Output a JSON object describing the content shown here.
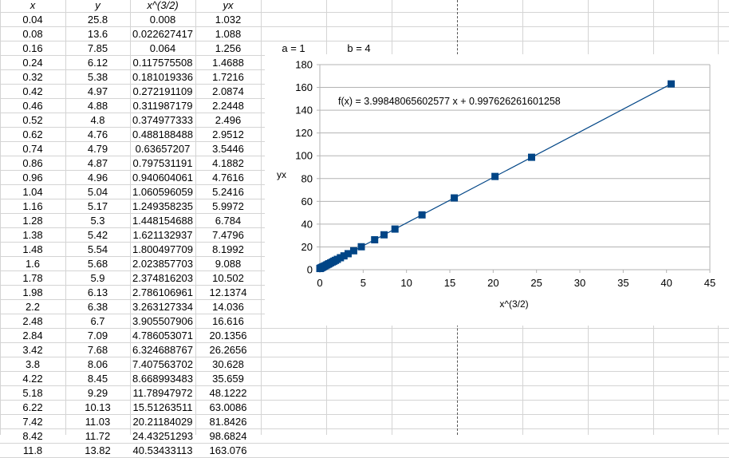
{
  "spreadsheet": {
    "headers": {
      "x": "x",
      "y": "y",
      "x32": "x^(3/2)",
      "yx": "yx"
    },
    "rows": [
      [
        "0.04",
        "25.8",
        "0.008",
        "1.032"
      ],
      [
        "0.08",
        "13.6",
        "0.022627417",
        "1.088"
      ],
      [
        "0.16",
        "7.85",
        "0.064",
        "1.256"
      ],
      [
        "0.24",
        "6.12",
        "0.117575508",
        "1.4688"
      ],
      [
        "0.32",
        "5.38",
        "0.181019336",
        "1.7216"
      ],
      [
        "0.42",
        "4.97",
        "0.272191109",
        "2.0874"
      ],
      [
        "0.46",
        "4.88",
        "0.311987179",
        "2.2448"
      ],
      [
        "0.52",
        "4.8",
        "0.374977333",
        "2.496"
      ],
      [
        "0.62",
        "4.76",
        "0.488188488",
        "2.9512"
      ],
      [
        "0.74",
        "4.79",
        "0.63657207",
        "3.5446"
      ],
      [
        "0.86",
        "4.87",
        "0.797531191",
        "4.1882"
      ],
      [
        "0.96",
        "4.96",
        "0.940604061",
        "4.7616"
      ],
      [
        "1.04",
        "5.04",
        "1.060596059",
        "5.2416"
      ],
      [
        "1.16",
        "5.17",
        "1.249358235",
        "5.9972"
      ],
      [
        "1.28",
        "5.3",
        "1.448154688",
        "6.784"
      ],
      [
        "1.38",
        "5.42",
        "1.621132937",
        "7.4796"
      ],
      [
        "1.48",
        "5.54",
        "1.800497709",
        "8.1992"
      ],
      [
        "1.6",
        "5.68",
        "2.023857703",
        "9.088"
      ],
      [
        "1.78",
        "5.9",
        "2.374816203",
        "10.502"
      ],
      [
        "1.98",
        "6.13",
        "2.786106961",
        "12.1374"
      ],
      [
        "2.2",
        "6.38",
        "3.263127334",
        "14.036"
      ],
      [
        "2.48",
        "6.7",
        "3.905507906",
        "16.616"
      ],
      [
        "2.84",
        "7.09",
        "4.786053071",
        "20.1356"
      ],
      [
        "3.42",
        "7.68",
        "6.324688767",
        "26.2656"
      ],
      [
        "3.8",
        "8.06",
        "7.407563702",
        "30.628"
      ],
      [
        "4.22",
        "8.45",
        "8.668993483",
        "35.659"
      ],
      [
        "5.18",
        "9.29",
        "11.78947972",
        "48.1222"
      ],
      [
        "6.22",
        "10.13",
        "15.51263511",
        "63.0086"
      ],
      [
        "7.42",
        "11.03",
        "20.21184029",
        "81.8426"
      ],
      [
        "8.42",
        "11.72",
        "24.43251293",
        "98.6824"
      ],
      [
        "11.8",
        "13.82",
        "40.53433113",
        "163.076"
      ]
    ],
    "params": {
      "a_label": "a = 1",
      "b_label": "b = 4"
    }
  },
  "chart_data": {
    "type": "scatter",
    "xlabel": "x^(3/2)",
    "ylabel": "yx",
    "xlim": [
      0,
      45
    ],
    "ylim": [
      0,
      180
    ],
    "xticks": [
      "0",
      "5",
      "10",
      "15",
      "20",
      "25",
      "30",
      "35",
      "40",
      "45"
    ],
    "yticks": [
      "0",
      "20",
      "40",
      "60",
      "80",
      "100",
      "120",
      "140",
      "160",
      "180"
    ],
    "grid": true,
    "marker_color": "#004586",
    "trendline": {
      "slope": 3.99848065602577,
      "intercept": 0.997626261601258,
      "equation_label": "f(x) = 3.99848065602577 x + 0.997626261601258",
      "color": "#004586"
    },
    "series": [
      {
        "x": [
          0.008,
          0.022627417,
          0.064,
          0.117575508,
          0.181019336,
          0.272191109,
          0.311987179,
          0.374977333,
          0.488188488,
          0.63657207,
          0.797531191,
          0.940604061,
          1.060596059,
          1.249358235,
          1.448154688,
          1.621132937,
          1.800497709,
          2.023857703,
          2.374816203,
          2.786106961,
          3.263127334,
          3.905507906,
          4.786053071,
          6.324688767,
          7.407563702,
          8.668993483,
          11.78947972,
          15.51263511,
          20.21184029,
          24.43251293,
          40.53433113
        ],
        "y": [
          1.032,
          1.088,
          1.256,
          1.4688,
          1.7216,
          2.0874,
          2.2448,
          2.496,
          2.9512,
          3.5446,
          4.1882,
          4.7616,
          5.2416,
          5.9972,
          6.784,
          7.4796,
          8.1992,
          9.088,
          10.502,
          12.1374,
          14.036,
          16.616,
          20.1356,
          26.2656,
          30.628,
          35.659,
          48.1222,
          63.0086,
          81.8426,
          98.6824,
          163.076
        ]
      }
    ]
  }
}
